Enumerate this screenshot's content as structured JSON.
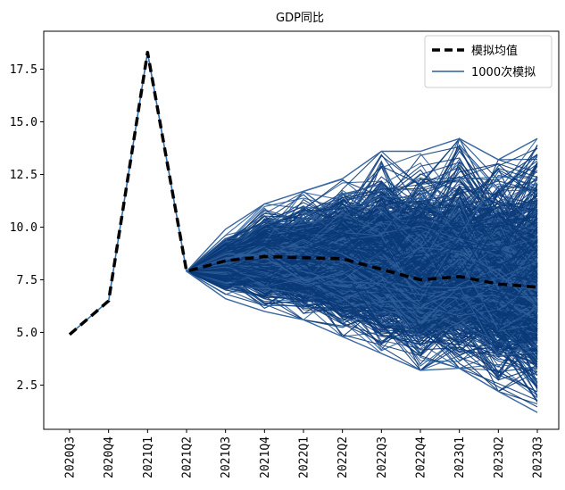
{
  "chart_data": {
    "type": "line",
    "title": "GDP同比",
    "xlabel": "",
    "ylabel": "",
    "categories": [
      "2020Q3",
      "2020Q4",
      "2021Q1",
      "2021Q2",
      "2021Q3",
      "2021Q4",
      "2022Q1",
      "2022Q2",
      "2022Q3",
      "2022Q4",
      "2023Q1",
      "2023Q2",
      "2023Q3"
    ],
    "ylim": [
      0.4,
      19.3
    ],
    "yticks": [
      2.5,
      5.0,
      7.5,
      10.0,
      12.5,
      15.0,
      17.5
    ],
    "yticklabels": [
      "2.5",
      "5.0",
      "7.5",
      "10.0",
      "12.5",
      "15.0",
      "17.5"
    ],
    "grid": false,
    "legend_position": "top-right",
    "series": [
      {
        "name": "模拟均值",
        "style": "dashed",
        "color": "#000000",
        "values": [
          4.9,
          6.5,
          18.3,
          7.9,
          8.4,
          8.6,
          8.55,
          8.5,
          8.0,
          7.5,
          7.65,
          7.3,
          7.15
        ]
      },
      {
        "name": "1000次模拟",
        "style": "solid",
        "color": "#1f4e8c",
        "simulation_count": 1000,
        "history": [
          4.9,
          6.5,
          18.3,
          7.9
        ],
        "band_upper": [
          9.9,
          11.1,
          11.7,
          12.3,
          13.6,
          13.6,
          14.2,
          13.2,
          14.2
        ],
        "band_lower": [
          6.6,
          6.0,
          5.6,
          4.8,
          4.0,
          3.2,
          3.3,
          2.2,
          1.2
        ]
      }
    ]
  }
}
